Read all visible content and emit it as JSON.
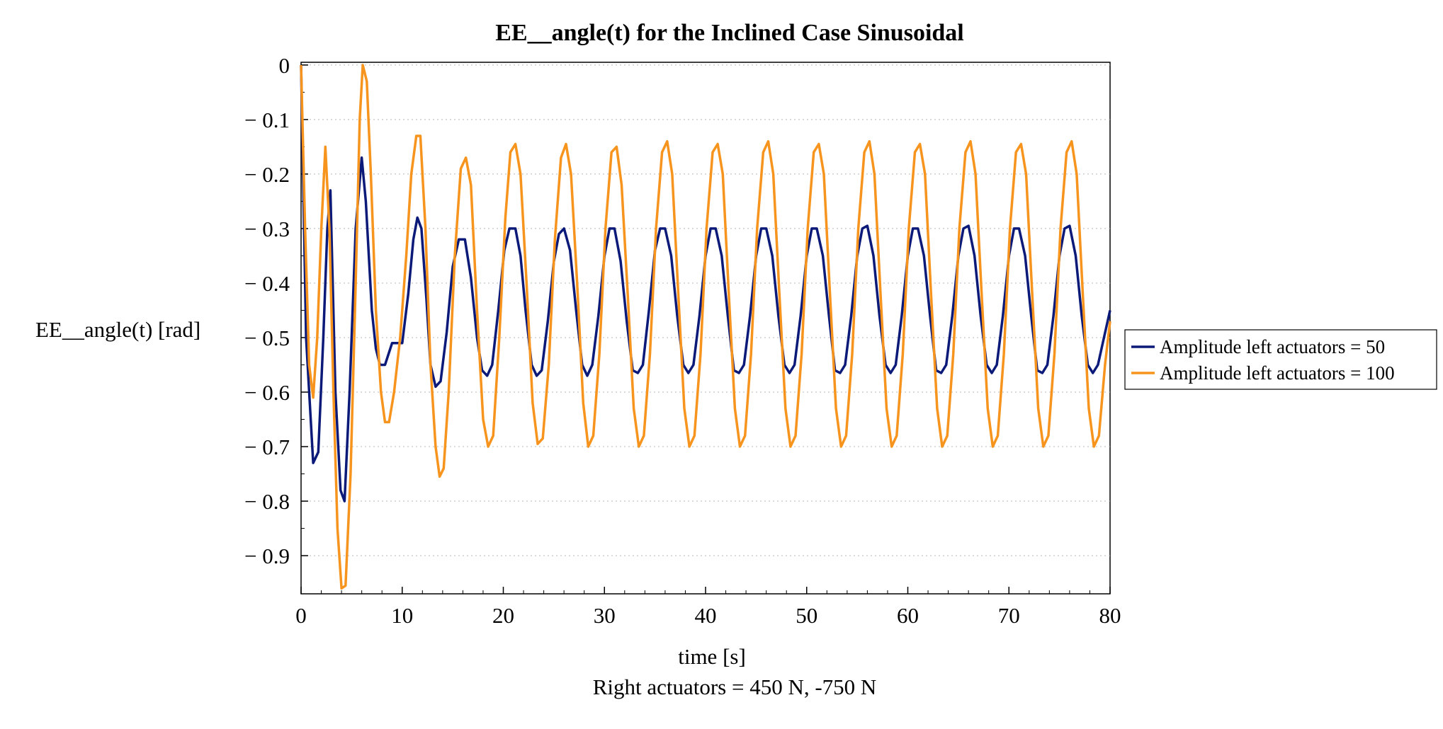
{
  "chart_data": {
    "type": "line",
    "title": "EE__angle(t) for the Inclined Case Sinusoidal",
    "xlabel": "time [s]",
    "ylabel": "EE__angle(t) [rad]",
    "caption": "Right actuators = 450 N, -750 N",
    "xlim": [
      0,
      80
    ],
    "ylim": [
      -0.97,
      0.005
    ],
    "x_ticks": [
      0,
      10,
      20,
      30,
      40,
      50,
      60,
      70,
      80
    ],
    "x_tick_labels": [
      "0",
      "10",
      "20",
      "30",
      "40",
      "50",
      "60",
      "70",
      "80"
    ],
    "y_ticks": [
      0,
      -0.1,
      -0.2,
      -0.3,
      -0.4,
      -0.5,
      -0.6,
      -0.7,
      -0.8,
      -0.9
    ],
    "y_tick_labels": [
      "0",
      "− 0.1",
      "− 0.2",
      "− 0.3",
      "− 0.4",
      "− 0.5",
      "− 0.6",
      "− 0.7",
      "− 0.8",
      "− 0.9"
    ],
    "grid": "horizontal dotted",
    "legend_position": "right",
    "series": [
      {
        "name": "Amplitude left actuators = 50",
        "color": "#0b1a78",
        "points": [
          [
            0,
            0
          ],
          [
            0.5,
            -0.5
          ],
          [
            1.2,
            -0.73
          ],
          [
            1.7,
            -0.71
          ],
          [
            2.2,
            -0.5
          ],
          [
            2.6,
            -0.3
          ],
          [
            2.9,
            -0.23
          ],
          [
            3.4,
            -0.6
          ],
          [
            3.9,
            -0.78
          ],
          [
            4.3,
            -0.8
          ],
          [
            4.8,
            -0.6
          ],
          [
            5.4,
            -0.3
          ],
          [
            6.0,
            -0.17
          ],
          [
            6.4,
            -0.25
          ],
          [
            7.0,
            -0.45
          ],
          [
            7.4,
            -0.52
          ],
          [
            7.8,
            -0.55
          ],
          [
            8.3,
            -0.55
          ],
          [
            9.0,
            -0.51
          ],
          [
            9.6,
            -0.51
          ],
          [
            10.0,
            -0.51
          ],
          [
            10.6,
            -0.42
          ],
          [
            11.1,
            -0.32
          ],
          [
            11.5,
            -0.28
          ],
          [
            11.9,
            -0.3
          ],
          [
            12.4,
            -0.43
          ],
          [
            12.8,
            -0.55
          ],
          [
            13.3,
            -0.59
          ],
          [
            13.8,
            -0.58
          ],
          [
            14.4,
            -0.49
          ],
          [
            15.0,
            -0.37
          ],
          [
            15.6,
            -0.32
          ],
          [
            16.2,
            -0.32
          ],
          [
            16.8,
            -0.39
          ],
          [
            17.4,
            -0.5
          ],
          [
            17.9,
            -0.56
          ],
          [
            18.4,
            -0.57
          ],
          [
            18.9,
            -0.55
          ],
          [
            19.5,
            -0.45
          ],
          [
            20.1,
            -0.34
          ],
          [
            20.6,
            -0.3
          ],
          [
            21.2,
            -0.3
          ],
          [
            21.7,
            -0.35
          ],
          [
            22.2,
            -0.45
          ],
          [
            22.8,
            -0.55
          ],
          [
            23.3,
            -0.57
          ],
          [
            23.8,
            -0.56
          ],
          [
            24.4,
            -0.47
          ],
          [
            25.0,
            -0.36
          ],
          [
            25.5,
            -0.31
          ],
          [
            26.0,
            -0.3
          ],
          [
            26.6,
            -0.34
          ],
          [
            27.2,
            -0.45
          ],
          [
            27.8,
            -0.55
          ],
          [
            28.3,
            -0.57
          ],
          [
            28.8,
            -0.55
          ],
          [
            29.4,
            -0.46
          ],
          [
            30.0,
            -0.35
          ],
          [
            30.5,
            -0.3
          ],
          [
            31.0,
            -0.3
          ],
          [
            31.6,
            -0.36
          ],
          [
            32.2,
            -0.47
          ],
          [
            32.8,
            -0.56
          ],
          [
            33.3,
            -0.565
          ],
          [
            33.8,
            -0.55
          ],
          [
            34.4,
            -0.45
          ],
          [
            35.0,
            -0.34
          ],
          [
            35.5,
            -0.3
          ],
          [
            36.0,
            -0.3
          ],
          [
            36.6,
            -0.35
          ],
          [
            37.2,
            -0.46
          ],
          [
            37.8,
            -0.55
          ],
          [
            38.3,
            -0.565
          ],
          [
            38.8,
            -0.55
          ],
          [
            39.4,
            -0.46
          ],
          [
            40.0,
            -0.35
          ],
          [
            40.5,
            -0.3
          ],
          [
            41.0,
            -0.3
          ],
          [
            41.6,
            -0.35
          ],
          [
            42.2,
            -0.46
          ],
          [
            42.8,
            -0.56
          ],
          [
            43.3,
            -0.565
          ],
          [
            43.8,
            -0.55
          ],
          [
            44.4,
            -0.46
          ],
          [
            45.0,
            -0.35
          ],
          [
            45.5,
            -0.3
          ],
          [
            46.0,
            -0.3
          ],
          [
            46.6,
            -0.35
          ],
          [
            47.2,
            -0.46
          ],
          [
            47.8,
            -0.55
          ],
          [
            48.3,
            -0.565
          ],
          [
            48.8,
            -0.55
          ],
          [
            49.4,
            -0.46
          ],
          [
            50.0,
            -0.35
          ],
          [
            50.5,
            -0.3
          ],
          [
            51.0,
            -0.3
          ],
          [
            51.6,
            -0.35
          ],
          [
            52.2,
            -0.46
          ],
          [
            52.8,
            -0.56
          ],
          [
            53.3,
            -0.565
          ],
          [
            53.8,
            -0.55
          ],
          [
            54.4,
            -0.46
          ],
          [
            55.0,
            -0.35
          ],
          [
            55.5,
            -0.3
          ],
          [
            56.0,
            -0.295
          ],
          [
            56.6,
            -0.35
          ],
          [
            57.2,
            -0.46
          ],
          [
            57.8,
            -0.55
          ],
          [
            58.3,
            -0.565
          ],
          [
            58.8,
            -0.55
          ],
          [
            59.4,
            -0.46
          ],
          [
            60.0,
            -0.35
          ],
          [
            60.5,
            -0.3
          ],
          [
            61.0,
            -0.3
          ],
          [
            61.6,
            -0.35
          ],
          [
            62.2,
            -0.46
          ],
          [
            62.8,
            -0.56
          ],
          [
            63.3,
            -0.565
          ],
          [
            63.8,
            -0.55
          ],
          [
            64.4,
            -0.46
          ],
          [
            65.0,
            -0.35
          ],
          [
            65.5,
            -0.3
          ],
          [
            66.0,
            -0.295
          ],
          [
            66.6,
            -0.35
          ],
          [
            67.2,
            -0.46
          ],
          [
            67.8,
            -0.55
          ],
          [
            68.3,
            -0.565
          ],
          [
            68.8,
            -0.55
          ],
          [
            69.4,
            -0.46
          ],
          [
            70.0,
            -0.35
          ],
          [
            70.5,
            -0.3
          ],
          [
            71.0,
            -0.3
          ],
          [
            71.6,
            -0.35
          ],
          [
            72.2,
            -0.46
          ],
          [
            72.8,
            -0.56
          ],
          [
            73.3,
            -0.565
          ],
          [
            73.8,
            -0.55
          ],
          [
            74.4,
            -0.46
          ],
          [
            75.0,
            -0.35
          ],
          [
            75.5,
            -0.3
          ],
          [
            76.0,
            -0.295
          ],
          [
            76.6,
            -0.35
          ],
          [
            77.2,
            -0.46
          ],
          [
            77.8,
            -0.55
          ],
          [
            78.3,
            -0.565
          ],
          [
            78.8,
            -0.55
          ],
          [
            79.4,
            -0.5
          ],
          [
            80.0,
            -0.45
          ]
        ]
      },
      {
        "name": "Amplitude left actuators = 100",
        "color": "#f7941d",
        "points": [
          [
            0,
            0
          ],
          [
            0.4,
            -0.3
          ],
          [
            0.8,
            -0.55
          ],
          [
            1.2,
            -0.61
          ],
          [
            1.6,
            -0.5
          ],
          [
            2.0,
            -0.3
          ],
          [
            2.4,
            -0.15
          ],
          [
            2.8,
            -0.3
          ],
          [
            3.2,
            -0.6
          ],
          [
            3.6,
            -0.85
          ],
          [
            4.0,
            -0.96
          ],
          [
            4.4,
            -0.955
          ],
          [
            4.9,
            -0.75
          ],
          [
            5.4,
            -0.4
          ],
          [
            5.8,
            -0.1
          ],
          [
            6.1,
            0
          ],
          [
            6.5,
            -0.03
          ],
          [
            6.9,
            -0.2
          ],
          [
            7.4,
            -0.45
          ],
          [
            7.9,
            -0.6
          ],
          [
            8.3,
            -0.655
          ],
          [
            8.7,
            -0.655
          ],
          [
            9.2,
            -0.6
          ],
          [
            9.8,
            -0.5
          ],
          [
            10.4,
            -0.35
          ],
          [
            10.9,
            -0.2
          ],
          [
            11.4,
            -0.13
          ],
          [
            11.8,
            -0.13
          ],
          [
            12.3,
            -0.3
          ],
          [
            12.8,
            -0.55
          ],
          [
            13.3,
            -0.7
          ],
          [
            13.7,
            -0.755
          ],
          [
            14.1,
            -0.74
          ],
          [
            14.6,
            -0.6
          ],
          [
            15.2,
            -0.35
          ],
          [
            15.8,
            -0.19
          ],
          [
            16.3,
            -0.17
          ],
          [
            16.8,
            -0.22
          ],
          [
            17.4,
            -0.45
          ],
          [
            18.0,
            -0.65
          ],
          [
            18.5,
            -0.7
          ],
          [
            19.0,
            -0.68
          ],
          [
            19.6,
            -0.5
          ],
          [
            20.2,
            -0.28
          ],
          [
            20.7,
            -0.16
          ],
          [
            21.2,
            -0.145
          ],
          [
            21.7,
            -0.2
          ],
          [
            22.3,
            -0.4
          ],
          [
            22.9,
            -0.62
          ],
          [
            23.4,
            -0.695
          ],
          [
            23.9,
            -0.685
          ],
          [
            24.5,
            -0.55
          ],
          [
            25.1,
            -0.32
          ],
          [
            25.7,
            -0.17
          ],
          [
            26.2,
            -0.145
          ],
          [
            26.7,
            -0.2
          ],
          [
            27.3,
            -0.4
          ],
          [
            27.9,
            -0.62
          ],
          [
            28.4,
            -0.7
          ],
          [
            28.9,
            -0.68
          ],
          [
            29.5,
            -0.53
          ],
          [
            30.1,
            -0.3
          ],
          [
            30.7,
            -0.16
          ],
          [
            31.2,
            -0.15
          ],
          [
            31.7,
            -0.22
          ],
          [
            32.3,
            -0.42
          ],
          [
            32.9,
            -0.63
          ],
          [
            33.4,
            -0.7
          ],
          [
            33.9,
            -0.68
          ],
          [
            34.5,
            -0.53
          ],
          [
            35.1,
            -0.3
          ],
          [
            35.7,
            -0.16
          ],
          [
            36.2,
            -0.14
          ],
          [
            36.7,
            -0.2
          ],
          [
            37.3,
            -0.42
          ],
          [
            37.9,
            -0.63
          ],
          [
            38.4,
            -0.7
          ],
          [
            38.9,
            -0.68
          ],
          [
            39.5,
            -0.53
          ],
          [
            40.1,
            -0.3
          ],
          [
            40.7,
            -0.16
          ],
          [
            41.2,
            -0.145
          ],
          [
            41.7,
            -0.2
          ],
          [
            42.3,
            -0.42
          ],
          [
            42.9,
            -0.63
          ],
          [
            43.4,
            -0.7
          ],
          [
            43.9,
            -0.68
          ],
          [
            44.5,
            -0.53
          ],
          [
            45.1,
            -0.3
          ],
          [
            45.7,
            -0.16
          ],
          [
            46.2,
            -0.14
          ],
          [
            46.7,
            -0.2
          ],
          [
            47.3,
            -0.42
          ],
          [
            47.9,
            -0.63
          ],
          [
            48.4,
            -0.7
          ],
          [
            48.9,
            -0.68
          ],
          [
            49.5,
            -0.53
          ],
          [
            50.1,
            -0.3
          ],
          [
            50.7,
            -0.16
          ],
          [
            51.2,
            -0.145
          ],
          [
            51.7,
            -0.2
          ],
          [
            52.3,
            -0.42
          ],
          [
            52.9,
            -0.63
          ],
          [
            53.4,
            -0.7
          ],
          [
            53.9,
            -0.68
          ],
          [
            54.5,
            -0.53
          ],
          [
            55.1,
            -0.3
          ],
          [
            55.7,
            -0.16
          ],
          [
            56.2,
            -0.14
          ],
          [
            56.7,
            -0.2
          ],
          [
            57.3,
            -0.42
          ],
          [
            57.9,
            -0.63
          ],
          [
            58.4,
            -0.7
          ],
          [
            58.9,
            -0.68
          ],
          [
            59.5,
            -0.53
          ],
          [
            60.1,
            -0.3
          ],
          [
            60.7,
            -0.16
          ],
          [
            61.2,
            -0.145
          ],
          [
            61.7,
            -0.2
          ],
          [
            62.3,
            -0.42
          ],
          [
            62.9,
            -0.63
          ],
          [
            63.4,
            -0.7
          ],
          [
            63.9,
            -0.68
          ],
          [
            64.5,
            -0.53
          ],
          [
            65.1,
            -0.3
          ],
          [
            65.7,
            -0.16
          ],
          [
            66.2,
            -0.14
          ],
          [
            66.7,
            -0.2
          ],
          [
            67.3,
            -0.42
          ],
          [
            67.9,
            -0.63
          ],
          [
            68.4,
            -0.7
          ],
          [
            68.9,
            -0.68
          ],
          [
            69.5,
            -0.53
          ],
          [
            70.1,
            -0.3
          ],
          [
            70.7,
            -0.16
          ],
          [
            71.2,
            -0.145
          ],
          [
            71.7,
            -0.2
          ],
          [
            72.3,
            -0.42
          ],
          [
            72.9,
            -0.63
          ],
          [
            73.4,
            -0.7
          ],
          [
            73.9,
            -0.68
          ],
          [
            74.5,
            -0.53
          ],
          [
            75.1,
            -0.3
          ],
          [
            75.7,
            -0.16
          ],
          [
            76.2,
            -0.14
          ],
          [
            76.7,
            -0.2
          ],
          [
            77.3,
            -0.42
          ],
          [
            77.9,
            -0.63
          ],
          [
            78.4,
            -0.7
          ],
          [
            78.9,
            -0.68
          ],
          [
            79.5,
            -0.55
          ],
          [
            80.0,
            -0.47
          ]
        ]
      }
    ]
  }
}
